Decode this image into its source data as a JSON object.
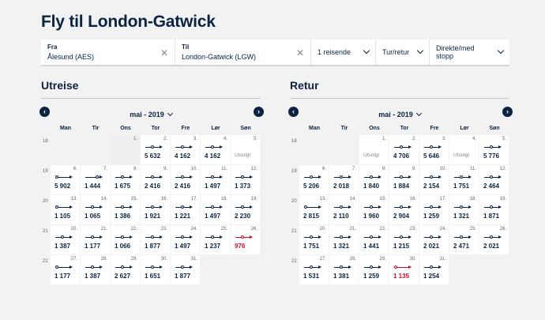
{
  "page": {
    "title": "Fly til London-Gatwick"
  },
  "search": {
    "from_label": "Fra",
    "from_value": "Ålesund (AES)",
    "to_label": "Til",
    "to_value": "London-Gatwick (LGW)",
    "passengers": "1 reisende",
    "trip_type": "Tur/retur",
    "stops": "Direkte/med stopp"
  },
  "colors": {
    "navy": "#0b2341",
    "lowest_price": "#c8102e"
  },
  "weekdays": [
    "Man",
    "Tir",
    "Ons",
    "Tor",
    "Fre",
    "Lør",
    "Søn"
  ],
  "outbound": {
    "heading": "Utreise",
    "month": "mai - 2019",
    "weeks": [
      {
        "wk": "18",
        "days": [
          {
            "t": "blank"
          },
          {
            "t": "blank"
          },
          {
            "t": "past",
            "n": "1."
          },
          {
            "t": "fare",
            "n": "2.",
            "p": "5 632",
            "s": 1
          },
          {
            "t": "fare",
            "n": "3.",
            "p": "4 162",
            "s": 1
          },
          {
            "t": "fare",
            "n": "4.",
            "p": "4 162",
            "s": 1
          },
          {
            "t": "sold",
            "n": "5.",
            "p": "Utsolgt"
          }
        ]
      },
      {
        "wk": "19",
        "days": [
          {
            "t": "fare",
            "n": "6.",
            "p": "5 902",
            "s": 0
          },
          {
            "t": "fare",
            "n": "7.",
            "p": "1 444",
            "s": 2
          },
          {
            "t": "fare",
            "n": "8.",
            "p": "1 675",
            "s": 1
          },
          {
            "t": "fare",
            "n": "9.",
            "p": "2 416",
            "s": 1
          },
          {
            "t": "fare",
            "n": "10.",
            "p": "2 416",
            "s": 1
          },
          {
            "t": "fare",
            "n": "11.",
            "p": "1 497",
            "s": 1
          },
          {
            "t": "fare",
            "n": "12.",
            "p": "1 373",
            "s": 1
          }
        ]
      },
      {
        "wk": "20",
        "days": [
          {
            "t": "fare",
            "n": "13.",
            "p": "1 105",
            "s": 0
          },
          {
            "t": "fare",
            "n": "14.",
            "p": "1 065",
            "s": 1
          },
          {
            "t": "fare",
            "n": "15.",
            "p": "1 386",
            "s": 1
          },
          {
            "t": "fare",
            "n": "16.",
            "p": "1 921",
            "s": 1
          },
          {
            "t": "fare",
            "n": "17.",
            "p": "1 221",
            "s": 1
          },
          {
            "t": "fare",
            "n": "18.",
            "p": "1 497",
            "s": 1
          },
          {
            "t": "fare",
            "n": "19.",
            "p": "2 230",
            "s": 1
          }
        ]
      },
      {
        "wk": "21",
        "days": [
          {
            "t": "fare",
            "n": "20.",
            "p": "1 387",
            "s": 1
          },
          {
            "t": "fare",
            "n": "21.",
            "p": "1 177",
            "s": 1
          },
          {
            "t": "fare",
            "n": "22.",
            "p": "1 066",
            "s": 1
          },
          {
            "t": "fare",
            "n": "23.",
            "p": "1 877",
            "s": 1
          },
          {
            "t": "fare",
            "n": "24.",
            "p": "1 497",
            "s": 1
          },
          {
            "t": "fare",
            "n": "25.",
            "p": "1 237",
            "s": 1
          },
          {
            "t": "fare",
            "n": "26.",
            "p": "976",
            "s": 1,
            "low": true
          }
        ]
      },
      {
        "wk": "22",
        "days": [
          {
            "t": "fare",
            "n": "27.",
            "p": "1 177",
            "s": 0
          },
          {
            "t": "fare",
            "n": "28.",
            "p": "1 387",
            "s": 1
          },
          {
            "t": "fare",
            "n": "29.",
            "p": "2 627",
            "s": 1
          },
          {
            "t": "fare",
            "n": "30.",
            "p": "1 651",
            "s": 1
          },
          {
            "t": "fare",
            "n": "31.",
            "p": "1 877",
            "s": 1
          }
        ]
      }
    ]
  },
  "return": {
    "heading": "Retur",
    "month": "mai - 2019",
    "weeks": [
      {
        "wk": "18",
        "days": [
          {
            "t": "blank"
          },
          {
            "t": "blank"
          },
          {
            "t": "sold",
            "n": "1.",
            "p": "Utsolgt"
          },
          {
            "t": "fare",
            "n": "2.",
            "p": "4 706",
            "s": 1
          },
          {
            "t": "fare",
            "n": "3.",
            "p": "5 646",
            "s": 1
          },
          {
            "t": "sold",
            "n": "4.",
            "p": "Utsolgt"
          },
          {
            "t": "fare",
            "n": "5.",
            "p": "5 776",
            "s": 1
          }
        ]
      },
      {
        "wk": "19",
        "days": [
          {
            "t": "fare",
            "n": "6.",
            "p": "5 206",
            "s": 1
          },
          {
            "t": "fare",
            "n": "7.",
            "p": "2 018",
            "s": 1
          },
          {
            "t": "fare",
            "n": "8.",
            "p": "1 840",
            "s": 1
          },
          {
            "t": "fare",
            "n": "9.",
            "p": "1 884",
            "s": 1
          },
          {
            "t": "fare",
            "n": "10.",
            "p": "2 154",
            "s": 1
          },
          {
            "t": "fare",
            "n": "11.",
            "p": "1 751",
            "s": 1
          },
          {
            "t": "fare",
            "n": "12.",
            "p": "2 464",
            "s": 1
          }
        ]
      },
      {
        "wk": "20",
        "days": [
          {
            "t": "fare",
            "n": "13.",
            "p": "2 815",
            "s": 0
          },
          {
            "t": "fare",
            "n": "14.",
            "p": "2 110",
            "s": 1
          },
          {
            "t": "fare",
            "n": "15.",
            "p": "1 960",
            "s": 1
          },
          {
            "t": "fare",
            "n": "16.",
            "p": "2 904",
            "s": 1
          },
          {
            "t": "fare",
            "n": "17.",
            "p": "1 259",
            "s": 1
          },
          {
            "t": "fare",
            "n": "18.",
            "p": "1 321",
            "s": 1
          },
          {
            "t": "fare",
            "n": "19.",
            "p": "1 871",
            "s": 1
          }
        ]
      },
      {
        "wk": "21",
        "days": [
          {
            "t": "fare",
            "n": "20.",
            "p": "1 751",
            "s": 1
          },
          {
            "t": "fare",
            "n": "21.",
            "p": "1 321",
            "s": 1
          },
          {
            "t": "fare",
            "n": "22.",
            "p": "1 441",
            "s": 1
          },
          {
            "t": "fare",
            "n": "23.",
            "p": "1 215",
            "s": 1
          },
          {
            "t": "fare",
            "n": "24.",
            "p": "2 021",
            "s": 1
          },
          {
            "t": "fare",
            "n": "25.",
            "p": "2 471",
            "s": 1
          },
          {
            "t": "fare",
            "n": "26.",
            "p": "2 021",
            "s": 1
          }
        ]
      },
      {
        "wk": "22",
        "days": [
          {
            "t": "fare",
            "n": "27.",
            "p": "1 531",
            "s": 1
          },
          {
            "t": "fare",
            "n": "28.",
            "p": "1 381",
            "s": 1
          },
          {
            "t": "fare",
            "n": "29.",
            "p": "1 259",
            "s": 1
          },
          {
            "t": "fare",
            "n": "30.",
            "p": "1 135",
            "s": 0,
            "low": true
          },
          {
            "t": "fare",
            "n": "31.",
            "p": "1 254",
            "s": 1
          }
        ]
      }
    ]
  }
}
